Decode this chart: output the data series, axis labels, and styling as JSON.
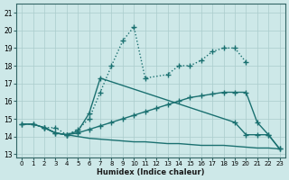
{
  "xlabel": "Humidex (Indice chaleur)",
  "background_color": "#cde8e8",
  "grid_color": "#aacccc",
  "line_color": "#1a7070",
  "xlim": [
    -0.5,
    23.5
  ],
  "ylim": [
    12.8,
    21.5
  ],
  "xticks": [
    0,
    1,
    2,
    3,
    4,
    5,
    6,
    7,
    8,
    9,
    10,
    11,
    12,
    13,
    14,
    15,
    16,
    17,
    18,
    19,
    20,
    21,
    22,
    23
  ],
  "yticks": [
    13,
    14,
    15,
    16,
    17,
    18,
    19,
    20,
    21
  ],
  "series": [
    {
      "x": [
        0,
        1,
        2,
        3,
        4,
        5,
        6,
        7,
        8,
        9,
        10,
        11,
        13,
        14,
        15,
        16,
        17,
        18,
        19,
        20
      ],
      "y": [
        14.7,
        14.7,
        14.5,
        14.5,
        14.1,
        14.4,
        15.0,
        16.5,
        18.0,
        19.4,
        20.2,
        17.3,
        17.5,
        18.0,
        18.0,
        18.3,
        18.8,
        19.0,
        19.0,
        18.2
      ],
      "linestyle": ":",
      "marker": "+",
      "markersize": 4,
      "linewidth": 1.0
    },
    {
      "x": [
        0,
        1,
        2,
        3,
        4,
        5,
        6,
        7,
        8,
        9,
        10,
        11,
        12,
        13,
        14,
        15,
        16,
        17,
        18,
        19,
        20,
        21,
        22,
        23
      ],
      "y": [
        14.7,
        14.7,
        14.5,
        14.2,
        14.1,
        14.2,
        14.4,
        14.6,
        14.8,
        15.0,
        15.2,
        15.4,
        15.6,
        15.8,
        16.0,
        16.2,
        16.3,
        16.4,
        16.5,
        16.5,
        16.5,
        14.8,
        14.1,
        13.3
      ],
      "linestyle": "-",
      "marker": "+",
      "markersize": 4,
      "linewidth": 1.0
    },
    {
      "x": [
        0,
        1,
        2,
        3,
        4,
        5,
        6,
        7,
        8,
        9,
        10,
        11,
        12,
        13,
        14,
        15,
        16,
        17,
        18,
        19,
        20,
        21,
        22,
        23
      ],
      "y": [
        14.7,
        14.7,
        14.5,
        14.2,
        14.1,
        14.0,
        13.9,
        13.85,
        13.8,
        13.75,
        13.7,
        13.7,
        13.65,
        13.6,
        13.6,
        13.55,
        13.5,
        13.5,
        13.5,
        13.45,
        13.4,
        13.35,
        13.35,
        13.3
      ],
      "linestyle": "-",
      "marker": null,
      "markersize": 0,
      "linewidth": 1.0
    },
    {
      "x": [
        2,
        3,
        4,
        5,
        6,
        7,
        19,
        20,
        21,
        22,
        23
      ],
      "y": [
        14.5,
        14.2,
        14.1,
        14.3,
        15.3,
        17.3,
        14.8,
        14.1,
        14.1,
        14.1,
        13.3
      ],
      "linestyle": "-",
      "marker": "+",
      "markersize": 4,
      "linewidth": 1.0
    }
  ]
}
